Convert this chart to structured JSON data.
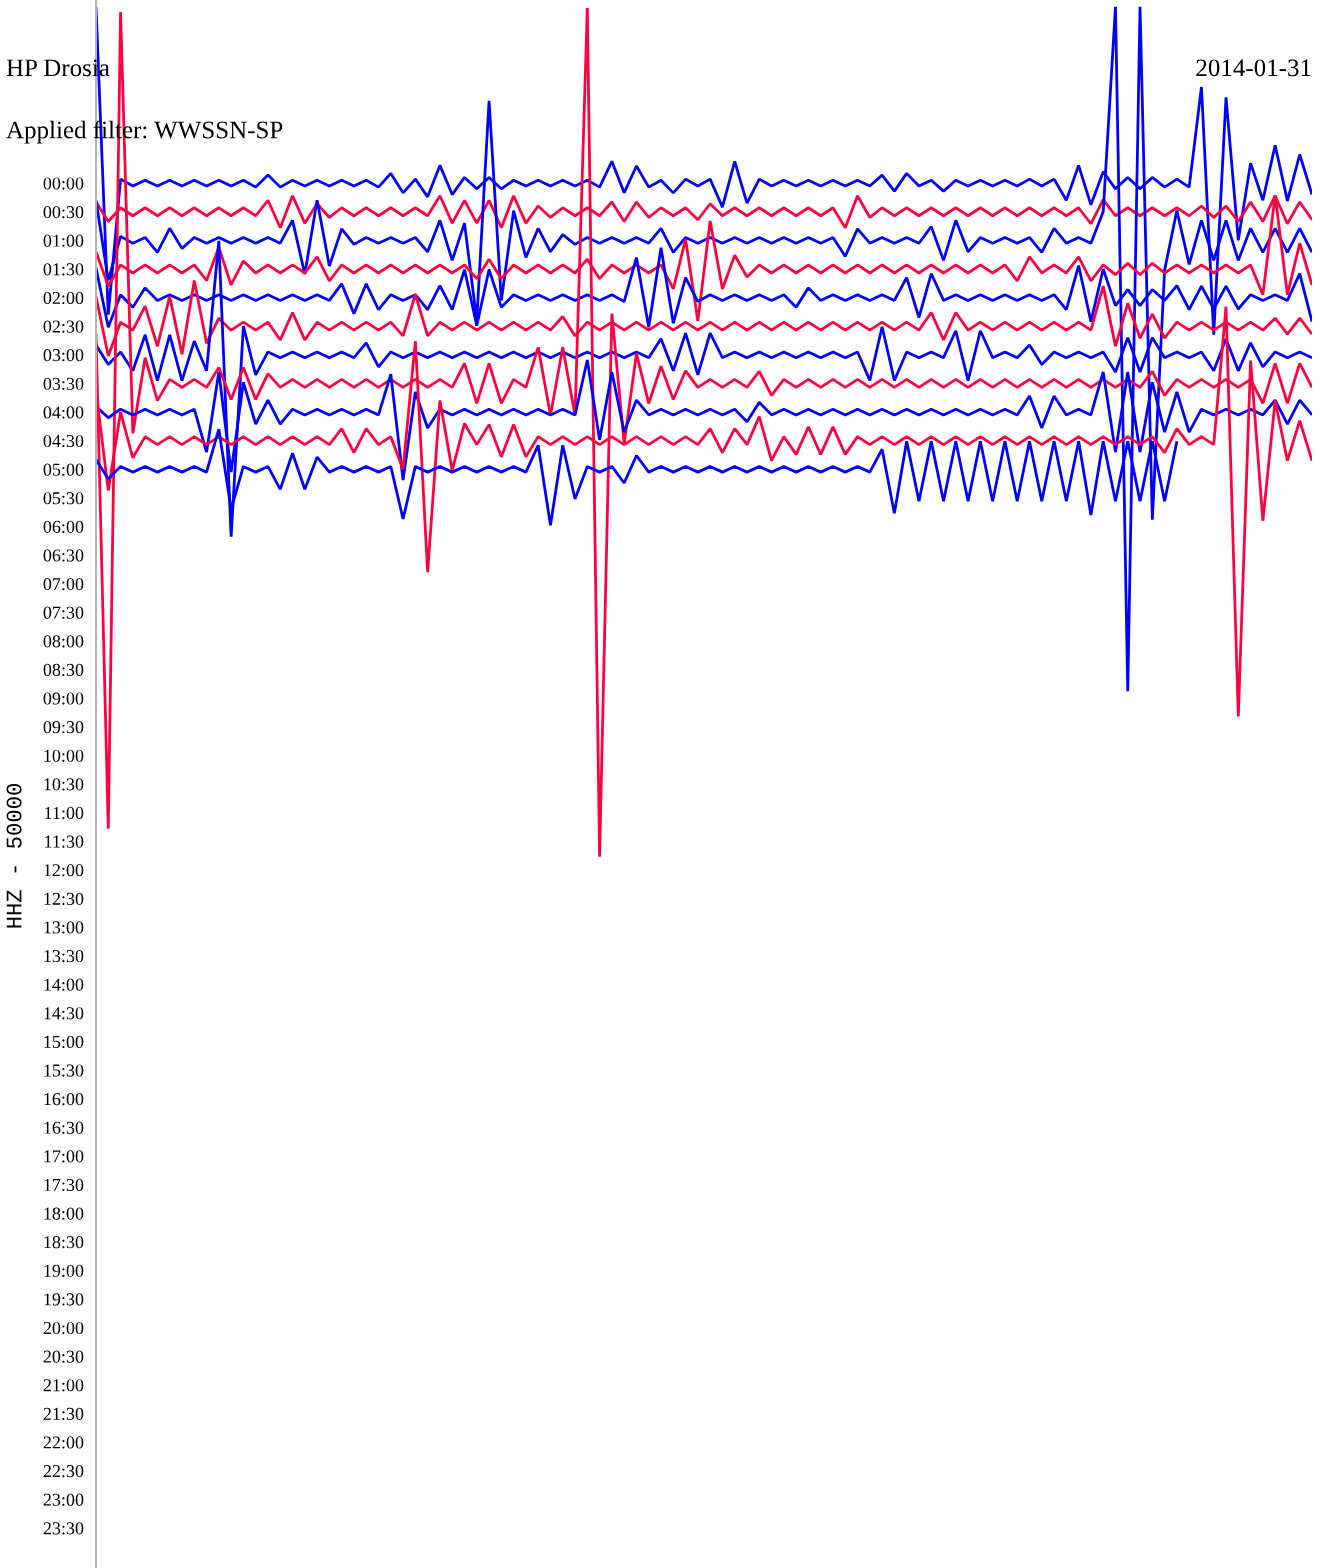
{
  "chart_data": {
    "type": "line",
    "title": "HP Drosia",
    "subtitle": "Applied filter: WWSSN-SP",
    "ylabel": "HHZ - 50000",
    "annotations": [
      "2014-01-31"
    ],
    "tick_labels": "y",
    "ylim": [
      24.2,
      -3.2
    ],
    "yticks": [
      {
        "value": 0,
        "label": "00:00"
      },
      {
        "value": 0.5,
        "label": "00:30"
      },
      {
        "value": 1,
        "label": "01:00"
      },
      {
        "value": 1.5,
        "label": "01:30"
      },
      {
        "value": 2,
        "label": "02:00"
      },
      {
        "value": 2.5,
        "label": "02:30"
      },
      {
        "value": 3,
        "label": "03:00"
      },
      {
        "value": 3.5,
        "label": "03:30"
      },
      {
        "value": 4,
        "label": "04:00"
      },
      {
        "value": 4.5,
        "label": "04:30"
      },
      {
        "value": 5,
        "label": "05:00"
      },
      {
        "value": 5.5,
        "label": "05:30"
      },
      {
        "value": 6,
        "label": "06:00"
      },
      {
        "value": 6.5,
        "label": "06:30"
      },
      {
        "value": 7,
        "label": "07:00"
      },
      {
        "value": 7.5,
        "label": "07:30"
      },
      {
        "value": 8,
        "label": "08:00"
      },
      {
        "value": 8.5,
        "label": "08:30"
      },
      {
        "value": 9,
        "label": "09:00"
      },
      {
        "value": 9.5,
        "label": "09:30"
      },
      {
        "value": 10,
        "label": "10:00"
      },
      {
        "value": 10.5,
        "label": "10:30"
      },
      {
        "value": 11,
        "label": "11:00"
      },
      {
        "value": 11.5,
        "label": "11:30"
      },
      {
        "value": 12,
        "label": "12:00"
      },
      {
        "value": 12.5,
        "label": "12:30"
      },
      {
        "value": 13,
        "label": "13:00"
      },
      {
        "value": 13.5,
        "label": "13:30"
      },
      {
        "value": 14,
        "label": "14:00"
      },
      {
        "value": 14.5,
        "label": "14:30"
      },
      {
        "value": 15,
        "label": "15:00"
      },
      {
        "value": 15.5,
        "label": "15:30"
      },
      {
        "value": 16,
        "label": "16:00"
      },
      {
        "value": 16.5,
        "label": "16:30"
      },
      {
        "value": 17,
        "label": "17:00"
      },
      {
        "value": 17.5,
        "label": "17:30"
      },
      {
        "value": 18,
        "label": "18:00"
      },
      {
        "value": 18.5,
        "label": "18:30"
      },
      {
        "value": 19,
        "label": "19:00"
      },
      {
        "value": 19.5,
        "label": "19:30"
      },
      {
        "value": 20,
        "label": "20:00"
      },
      {
        "value": 20.5,
        "label": "20:30"
      },
      {
        "value": 21,
        "label": "21:00"
      },
      {
        "value": 21.5,
        "label": "21:30"
      },
      {
        "value": 22,
        "label": "22:00"
      },
      {
        "value": 22.5,
        "label": "22:30"
      },
      {
        "value": 23,
        "label": "23:00"
      },
      {
        "value": 23.5,
        "label": "23:30"
      }
    ],
    "categories": [
      null,
      null,
      null,
      null,
      null,
      null,
      null,
      null,
      null,
      null,
      null,
      null,
      null,
      null,
      null,
      null,
      null,
      null,
      null,
      null,
      null,
      null,
      null,
      null,
      null,
      null,
      null,
      null,
      null,
      null,
      null,
      null,
      null,
      null,
      null,
      null,
      null,
      null,
      null,
      null,
      null,
      null,
      null,
      null,
      null,
      null,
      null,
      null,
      null,
      null,
      null,
      null,
      null,
      null,
      null,
      null,
      null,
      null,
      null,
      null,
      null,
      null,
      null,
      null,
      null,
      null,
      null,
      null,
      null,
      null,
      null,
      null,
      null,
      null,
      null,
      null,
      null,
      null,
      null,
      null,
      null,
      null,
      null,
      null,
      null,
      null,
      null,
      null,
      null,
      null,
      null,
      null,
      null,
      null,
      null,
      null,
      null,
      null,
      null,
      null
    ],
    "series": [
      {
        "color": "#0000ff",
        "values": [
          -3.08,
          2.3,
          -0.07,
          0.05,
          -0.05,
          0.05,
          -0.05,
          0.05,
          -0.05,
          0.05,
          -0.05,
          0.05,
          -0.05,
          0.07,
          -0.14,
          0.07,
          -0.05,
          0.05,
          -0.05,
          0.05,
          -0.05,
          0.05,
          -0.05,
          0.07,
          -0.17,
          0.17,
          -0.07,
          0.24,
          -0.31,
          0.2,
          -0.1,
          0.1,
          -0.1,
          0.1,
          -0.05,
          0.05,
          -0.05,
          0.05,
          -0.05,
          0.05,
          -0.05,
          0.07,
          -0.38,
          0.17,
          -0.3,
          0.07,
          -0.05,
          0.17,
          -0.07,
          0.05,
          -0.07,
          0.42,
          -0.38,
          0.35,
          -0.07,
          0.05,
          -0.05,
          0.05,
          -0.05,
          0.05,
          -0.05,
          0.05,
          -0.05,
          0.05,
          -0.14,
          0.14,
          -0.17,
          0.05,
          -0.05,
          0.14,
          -0.05,
          0.05,
          -0.05,
          0.05,
          -0.05,
          0.05,
          -0.07,
          0.05,
          -0.07,
          0.3,
          -0.31,
          0.38,
          -0.2,
          0.1,
          -0.1,
          0.1,
          -0.1,
          0.07,
          -0.07,
          0.07,
          -1.68,
          2.65,
          -1.5,
          1.0,
          -0.35,
          0.3,
          -0.66,
          0.31,
          -0.5,
          0.2
        ]
      },
      {
        "color": "#ff0040",
        "values": [
          0.33,
          0.67,
          0.43,
          0.57,
          0.43,
          0.57,
          0.43,
          0.57,
          0.43,
          0.57,
          0.43,
          0.57,
          0.43,
          0.57,
          0.3,
          0.78,
          0.22,
          0.7,
          0.36,
          0.6,
          0.43,
          0.57,
          0.43,
          0.57,
          0.43,
          0.57,
          0.43,
          0.57,
          0.22,
          0.7,
          0.3,
          0.7,
          0.3,
          0.78,
          0.22,
          0.7,
          0.4,
          0.6,
          0.43,
          0.57,
          0.43,
          0.57,
          0.33,
          0.67,
          0.33,
          0.6,
          0.43,
          0.57,
          0.43,
          0.64,
          0.36,
          0.57,
          0.43,
          0.57,
          0.43,
          0.57,
          0.43,
          0.57,
          0.43,
          0.57,
          0.43,
          0.78,
          0.22,
          0.6,
          0.43,
          0.57,
          0.43,
          0.57,
          0.43,
          0.57,
          0.43,
          0.57,
          0.43,
          0.57,
          0.43,
          0.57,
          0.43,
          0.57,
          0.43,
          0.57,
          0.43,
          0.71,
          0.29,
          0.57,
          0.43,
          0.57,
          0.43,
          0.57,
          0.43,
          0.57,
          0.4,
          0.6,
          0.4,
          0.67,
          0.33,
          0.67,
          0.22,
          0.71,
          0.33,
          0.64
        ]
      },
      {
        "color": "#0000ff",
        "values": [
          0.3,
          1.7,
          0.93,
          1.05,
          0.95,
          1.21,
          0.79,
          1.14,
          0.95,
          1.05,
          0.95,
          1.05,
          0.95,
          1.05,
          0.95,
          1.05,
          0.65,
          1.59,
          0.3,
          1.45,
          0.8,
          1.07,
          0.95,
          1.05,
          0.95,
          1.05,
          0.95,
          1.2,
          0.65,
          1.35,
          0.7,
          2.4,
          -1.44,
          2.05,
          0.48,
          1.3,
          0.79,
          1.2,
          0.9,
          1.07,
          0.95,
          1.05,
          0.95,
          1.05,
          0.95,
          1.05,
          0.79,
          1.21,
          0.95,
          1.05,
          0.95,
          1.05,
          0.95,
          1.05,
          0.95,
          1.05,
          0.95,
          1.05,
          0.95,
          1.05,
          0.95,
          1.28,
          0.8,
          1.05,
          0.95,
          1.05,
          0.95,
          1.05,
          0.76,
          1.35,
          0.65,
          1.2,
          0.95,
          1.05,
          0.95,
          1.05,
          0.95,
          1.21,
          0.79,
          1.05,
          0.95,
          1.05,
          0.5,
          -3.08,
          8.88,
          -3.08,
          5.88,
          1.52,
          0.48,
          1.42,
          0.65,
          1.35,
          0.65,
          1.35,
          0.79,
          1.21,
          0.79,
          1.21,
          0.79,
          1.21
        ]
      },
      {
        "color": "#ff0040",
        "values": [
          1.2,
          1.8,
          1.43,
          1.57,
          1.43,
          1.57,
          1.43,
          1.57,
          1.43,
          1.7,
          1.12,
          1.78,
          1.36,
          1.57,
          1.43,
          1.57,
          1.43,
          1.57,
          1.29,
          1.71,
          1.43,
          1.57,
          1.43,
          1.57,
          1.43,
          1.57,
          1.43,
          1.57,
          1.43,
          1.57,
          1.43,
          1.67,
          1.33,
          1.67,
          1.43,
          1.57,
          1.43,
          1.57,
          1.43,
          1.57,
          1.33,
          1.67,
          1.43,
          1.57,
          1.43,
          1.57,
          1.43,
          1.85,
          0.98,
          2.41,
          0.66,
          1.85,
          1.26,
          1.64,
          1.43,
          1.57,
          1.43,
          1.57,
          1.43,
          1.57,
          1.43,
          1.57,
          1.43,
          1.57,
          1.43,
          1.57,
          1.43,
          1.57,
          1.43,
          1.57,
          1.43,
          1.57,
          1.43,
          1.57,
          1.43,
          1.71,
          1.29,
          1.57,
          1.43,
          1.57,
          1.29,
          1.71,
          1.43,
          1.6,
          1.4,
          1.6,
          1.4,
          1.57,
          1.43,
          1.57,
          1.43,
          1.57,
          1.43,
          1.57,
          1.43,
          1.95,
          0.21,
          1.95,
          1.05,
          1.78
        ]
      },
      {
        "color": "#0000ff",
        "values": [
          1.48,
          2.52,
          1.95,
          2.17,
          1.83,
          2.05,
          1.95,
          2.05,
          1.95,
          2.05,
          1.95,
          2.05,
          1.95,
          2.05,
          1.95,
          2.05,
          1.95,
          2.05,
          1.95,
          2.05,
          1.76,
          2.28,
          1.76,
          2.21,
          1.95,
          2.05,
          1.95,
          2.21,
          1.79,
          2.21,
          1.51,
          2.49,
          1.51,
          2.17,
          1.95,
          2.05,
          1.95,
          2.05,
          1.95,
          2.05,
          1.95,
          2.05,
          1.95,
          2.07,
          1.3,
          2.52,
          1.13,
          2.45,
          1.65,
          2.07,
          1.95,
          2.05,
          1.95,
          2.05,
          1.95,
          2.05,
          1.95,
          2.17,
          1.83,
          2.05,
          1.95,
          2.05,
          1.95,
          2.05,
          1.95,
          2.05,
          1.65,
          2.35,
          1.58,
          2.05,
          1.95,
          2.05,
          1.95,
          2.05,
          1.95,
          2.05,
          1.95,
          2.05,
          1.95,
          2.21,
          1.44,
          2.42,
          1.5,
          2.14,
          1.86,
          2.14,
          1.86,
          2.05,
          1.79,
          2.21,
          1.8,
          2.2,
          1.8,
          2.2,
          1.95,
          2.05,
          1.95,
          2.05,
          1.58,
          2.42
        ]
      },
      {
        "color": "#ff0040",
        "values": [
          1.98,
          3.02,
          2.43,
          2.57,
          2.15,
          2.85,
          1.98,
          2.99,
          1.7,
          2.8,
          2.36,
          2.57,
          2.43,
          2.57,
          2.43,
          2.74,
          2.26,
          2.74,
          2.43,
          2.57,
          2.43,
          2.57,
          2.43,
          2.57,
          2.43,
          2.67,
          1.94,
          2.67,
          2.43,
          2.57,
          2.43,
          2.57,
          2.43,
          2.57,
          2.43,
          2.57,
          2.43,
          2.57,
          2.33,
          2.67,
          2.43,
          2.57,
          2.43,
          2.57,
          2.43,
          2.57,
          2.43,
          2.57,
          2.43,
          2.57,
          2.43,
          2.57,
          2.43,
          2.57,
          2.43,
          2.57,
          2.43,
          2.57,
          2.43,
          2.57,
          2.43,
          2.57,
          2.43,
          2.57,
          2.43,
          2.57,
          2.43,
          2.57,
          2.26,
          2.74,
          2.26,
          2.57,
          2.43,
          2.57,
          2.43,
          2.57,
          2.43,
          2.57,
          2.43,
          2.57,
          2.43,
          2.57,
          1.8,
          2.85,
          2.1,
          2.71,
          2.29,
          2.71,
          2.43,
          2.57,
          2.43,
          2.57,
          2.43,
          2.57,
          2.43,
          2.57,
          2.36,
          2.64,
          2.36,
          2.64
        ]
      },
      {
        "color": "#0000ff",
        "values": [
          2.83,
          3.17,
          2.95,
          3.28,
          2.65,
          3.45,
          2.65,
          3.45,
          2.76,
          3.28,
          1.01,
          6.18,
          2.5,
          3.35,
          2.95,
          3.05,
          2.95,
          3.05,
          2.95,
          3.05,
          2.95,
          3.05,
          2.79,
          3.21,
          2.95,
          3.05,
          2.95,
          3.05,
          2.95,
          3.05,
          2.95,
          3.05,
          2.95,
          3.05,
          2.95,
          3.05,
          2.95,
          3.05,
          2.95,
          3.05,
          2.95,
          3.05,
          2.95,
          3.05,
          2.95,
          3.05,
          2.72,
          3.28,
          2.62,
          3.35,
          2.62,
          3.05,
          2.95,
          3.05,
          2.95,
          3.05,
          2.95,
          3.05,
          2.95,
          3.05,
          2.95,
          3.05,
          2.95,
          3.45,
          2.51,
          3.45,
          2.95,
          3.05,
          2.95,
          3.05,
          2.58,
          3.45,
          2.58,
          3.05,
          2.95,
          3.05,
          2.83,
          3.17,
          2.95,
          3.05,
          2.95,
          3.05,
          2.95,
          3.3,
          2.7,
          3.3,
          2.7,
          3.05,
          2.95,
          3.05,
          2.95,
          3.28,
          2.72,
          3.28,
          2.79,
          3.21,
          2.95,
          3.05,
          2.95,
          3.05
        ]
      },
      {
        "color": "#ff0040",
        "values": [
          2.63,
          11.28,
          -2.99,
          4.37,
          3.05,
          3.8,
          3.43,
          3.57,
          3.43,
          3.57,
          3.22,
          3.78,
          3.22,
          3.78,
          3.33,
          3.57,
          3.43,
          3.57,
          3.43,
          3.57,
          3.43,
          3.57,
          3.43,
          3.57,
          3.43,
          3.57,
          3.43,
          3.57,
          3.43,
          3.57,
          3.15,
          3.85,
          3.15,
          3.85,
          3.43,
          3.57,
          2.87,
          4.06,
          2.87,
          4.06,
          -3.06,
          11.77,
          2.28,
          4.55,
          2.98,
          3.85,
          3.2,
          3.78,
          3.28,
          3.57,
          3.43,
          3.57,
          3.43,
          3.57,
          3.29,
          3.71,
          3.43,
          3.57,
          3.43,
          3.57,
          3.43,
          3.57,
          3.43,
          3.57,
          3.43,
          3.57,
          3.43,
          3.57,
          3.43,
          3.57,
          3.43,
          3.57,
          3.43,
          3.57,
          3.43,
          3.57,
          3.43,
          3.57,
          3.43,
          3.57,
          3.43,
          3.57,
          3.43,
          3.57,
          3.43,
          3.57,
          3.29,
          3.71,
          3.43,
          3.57,
          3.43,
          3.57,
          3.43,
          3.57,
          3.43,
          3.85,
          3.15,
          3.85,
          3.15,
          3.57
        ]
      },
      {
        "color": "#0000ff",
        "values": [
          3.9,
          4.1,
          3.95,
          4.05,
          3.95,
          4.05,
          3.95,
          4.05,
          3.95,
          4.7,
          3.3,
          5.05,
          3.48,
          4.21,
          3.79,
          4.21,
          3.95,
          4.05,
          3.95,
          4.05,
          3.95,
          4.05,
          3.95,
          4.05,
          3.34,
          5.19,
          3.65,
          4.28,
          3.95,
          4.05,
          3.95,
          4.05,
          3.95,
          4.05,
          3.95,
          4.05,
          3.95,
          4.05,
          3.95,
          4.05,
          3.09,
          4.49,
          3.3,
          4.35,
          3.79,
          4.05,
          3.95,
          4.05,
          3.95,
          4.05,
          3.95,
          4.05,
          3.95,
          4.17,
          3.83,
          4.05,
          3.95,
          4.05,
          3.95,
          4.05,
          3.95,
          4.05,
          3.95,
          4.05,
          3.95,
          4.05,
          3.95,
          4.05,
          3.95,
          4.05,
          3.95,
          4.05,
          3.95,
          4.05,
          3.95,
          4.05,
          3.72,
          4.28,
          3.72,
          4.05,
          3.95,
          4.05,
          3.3,
          4.7,
          3.3,
          4.7,
          3.48,
          4.35,
          3.65,
          4.35,
          3.95,
          4.05,
          3.95,
          4.05,
          3.95,
          4.05,
          3.79,
          4.21,
          3.79,
          4.05
        ]
      },
      {
        "color": "#ff0040",
        "values": [
          3.63,
          5.37,
          4.0,
          4.8,
          4.43,
          4.57,
          4.43,
          4.57,
          4.43,
          4.57,
          4.43,
          4.57,
          4.43,
          4.57,
          4.43,
          4.57,
          4.43,
          4.57,
          4.43,
          4.57,
          4.29,
          4.71,
          4.29,
          4.57,
          4.43,
          5.0,
          2.76,
          6.8,
          3.8,
          5.02,
          4.2,
          4.57,
          4.22,
          4.78,
          4.22,
          4.78,
          4.43,
          4.57,
          4.43,
          4.57,
          4.43,
          4.57,
          4.43,
          4.57,
          4.43,
          4.57,
          4.43,
          4.57,
          4.43,
          4.57,
          4.29,
          4.71,
          4.29,
          4.57,
          4.08,
          4.85,
          4.43,
          4.74,
          4.26,
          4.74,
          4.26,
          4.74,
          4.43,
          4.57,
          4.43,
          4.57,
          4.43,
          4.57,
          4.43,
          4.57,
          4.43,
          4.57,
          4.43,
          4.57,
          4.43,
          4.57,
          4.43,
          4.57,
          4.43,
          4.57,
          4.43,
          4.57,
          4.43,
          4.57,
          4.43,
          4.57,
          4.43,
          4.71,
          4.29,
          4.57,
          4.43,
          4.57,
          2.16,
          9.32,
          3.1,
          5.9,
          3.8,
          4.85,
          4.15,
          4.85
        ]
      },
      {
        "color": "#0000ff",
        "values": [
          4.83,
          5.17,
          4.95,
          5.05,
          4.95,
          5.05,
          4.95,
          5.05,
          4.95,
          5.05,
          4.3,
          5.7,
          4.95,
          5.05,
          4.95,
          5.35,
          4.72,
          5.35,
          4.79,
          5.05,
          4.95,
          5.05,
          4.95,
          5.05,
          4.95,
          5.87,
          4.95,
          5.05,
          4.95,
          5.05,
          4.95,
          5.05,
          4.95,
          5.05,
          4.95,
          5.05,
          4.58,
          5.98,
          4.58,
          5.52,
          4.95,
          5.05,
          4.95,
          5.24,
          4.76,
          5.05,
          4.95,
          5.05,
          4.95,
          5.05,
          4.95,
          5.05,
          4.95,
          5.05,
          4.95,
          5.05,
          4.95,
          5.05,
          4.95,
          5.05,
          4.95,
          5.05,
          4.95,
          5.05,
          4.65,
          5.77,
          4.51,
          5.56,
          4.51,
          5.56,
          4.51,
          5.56,
          4.51,
          5.56,
          4.51,
          5.56,
          4.51,
          5.56,
          4.51,
          5.56,
          4.51,
          5.8,
          4.51,
          5.56,
          4.51,
          5.56,
          4.51,
          5.56,
          4.51,
          null,
          null,
          null,
          null,
          null,
          null,
          null,
          null,
          null,
          null,
          null
        ]
      }
    ]
  }
}
